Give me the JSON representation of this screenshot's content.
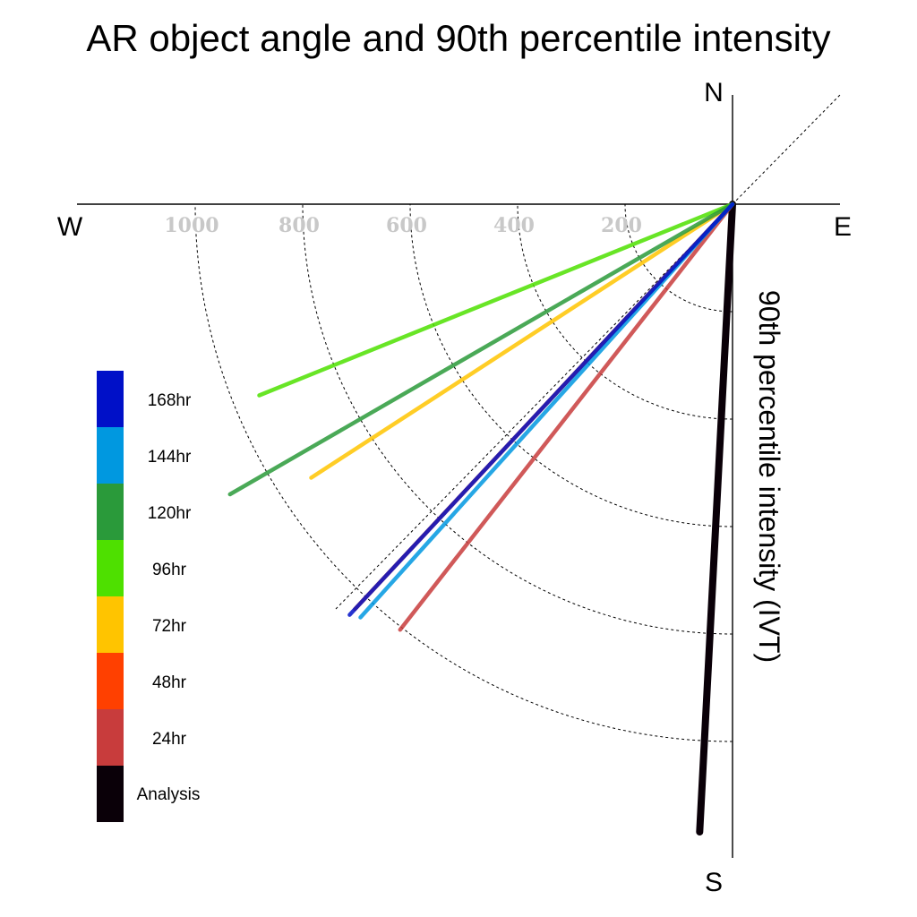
{
  "chart_data": {
    "type": "polar-vector",
    "title": "AR object angle and 90th percentile intensity",
    "radial_axis_label": "90th percentile intensity (IVT)",
    "directions": {
      "north": "N",
      "south": "S",
      "east": "E",
      "west": "W"
    },
    "radial_ticks": [
      200,
      400,
      600,
      800,
      1000
    ],
    "radial_tick_labels": [
      "200",
      "400",
      "600",
      "800",
      "1000"
    ],
    "rlim": [
      0,
      1200
    ],
    "grid": true,
    "legend_placement": "left",
    "series": [
      {
        "name": "168hr",
        "color": "#0010c8",
        "angle_deg": 223,
        "intensity": 1045
      },
      {
        "name": "144hr",
        "color": "#0098e0",
        "angle_deg": 222,
        "intensity": 1035
      },
      {
        "name": "120hr",
        "color": "#2a9a3a",
        "angle_deg": 240,
        "intensity": 1080
      },
      {
        "name": "96hr",
        "color": "#4ee000",
        "angle_deg": 248,
        "intensity": 950
      },
      {
        "name": "72hr",
        "color": "#ffc400",
        "angle_deg": 237,
        "intensity": 935
      },
      {
        "name": "48hr",
        "color": "#ff4000",
        "angle_deg": 223,
        "intensity": 1030
      },
      {
        "name": "24hr",
        "color": "#c83c3c",
        "angle_deg": 218,
        "intensity": 1005
      },
      {
        "name": "Analysis",
        "color": "#0a0008",
        "angle_deg": 183,
        "intensity": 1170
      }
    ]
  }
}
